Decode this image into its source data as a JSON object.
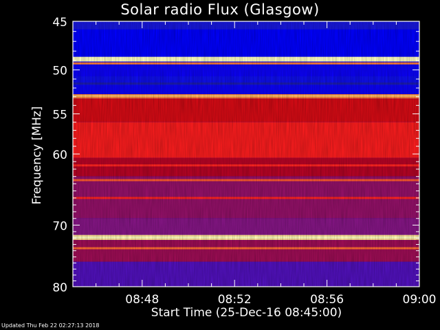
{
  "chart_data": {
    "type": "heatmap",
    "title": "Solar radio Flux (Glasgow)",
    "xlabel": "Start Time (25-Dec-16 08:45:00)",
    "ylabel": "Frequency [MHz]",
    "x_ticks": [
      "08:48",
      "08:52",
      "08:56",
      "09:00"
    ],
    "x_tick_minutes": [
      3,
      7,
      11,
      15
    ],
    "xlim_minutes": [
      0,
      15
    ],
    "y_ticks": [
      45,
      50,
      55,
      60,
      70,
      80
    ],
    "ylim": [
      45,
      80
    ],
    "y_scale": "log",
    "colormap": [
      "#10106a",
      "#2020d0",
      "#0000ff",
      "#7a1a9a",
      "#c00010",
      "#ff2020",
      "#ffa040",
      "#ffffc0"
    ],
    "bands": [
      {
        "f0": 45.0,
        "f1": 45.8,
        "level": 0.18
      },
      {
        "f0": 45.8,
        "f1": 48.6,
        "level": 0.28
      },
      {
        "f0": 48.6,
        "f1": 49.1,
        "level": 1.0
      },
      {
        "f0": 49.1,
        "f1": 50.7,
        "level": 0.3
      },
      {
        "f0": 50.7,
        "f1": 51.7,
        "level": 0.22
      },
      {
        "f0": 51.7,
        "f1": 52.7,
        "level": 0.3
      },
      {
        "f0": 52.7,
        "f1": 53.2,
        "level": 0.82
      },
      {
        "f0": 53.2,
        "f1": 56.0,
        "level": 0.62
      },
      {
        "f0": 56.0,
        "f1": 60.5,
        "level": 0.7
      },
      {
        "f0": 60.5,
        "f1": 63.0,
        "level": 0.55
      },
      {
        "f0": 63.0,
        "f1": 69.0,
        "level": 0.48
      },
      {
        "f0": 69.0,
        "f1": 71.5,
        "level": 0.45
      },
      {
        "f0": 71.5,
        "f1": 72.3,
        "level": 0.95
      },
      {
        "f0": 72.3,
        "f1": 75.8,
        "level": 0.5
      },
      {
        "f0": 75.8,
        "f1": 80.0,
        "level": 0.38
      }
    ],
    "lines": [
      {
        "f": 48.8,
        "level": 1.0
      },
      {
        "f": 49.3,
        "level": 0.82
      },
      {
        "f": 51.5,
        "level": 0.1
      },
      {
        "f": 52.9,
        "level": 0.9
      },
      {
        "f": 61.5,
        "level": 0.72
      },
      {
        "f": 63.5,
        "level": 0.78
      },
      {
        "f": 66.0,
        "level": 0.72
      },
      {
        "f": 71.9,
        "level": 1.0
      },
      {
        "f": 73.6,
        "level": 0.8
      }
    ]
  },
  "footer": "Updated Thu Feb 22 02:27:13 2018"
}
